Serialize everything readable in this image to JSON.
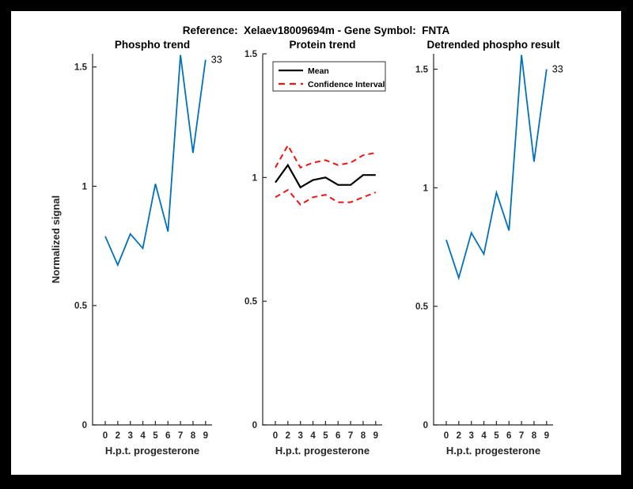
{
  "title": "Reference:  Xelaev18009694m - Gene Symbol:  FNTA",
  "colors": {
    "line_blue": "#0072BD",
    "ci_red": "#F01414",
    "mean_black": "#000000",
    "axis": "#262626",
    "figure_bg": "#ffffff",
    "page_bg": "#000000"
  },
  "chart_data": [
    {
      "type": "line",
      "title": "Phospho trend",
      "xlabel": "H.p.t. progesterone",
      "ylabel": "Normalized signal",
      "x": [
        0,
        2,
        3,
        4,
        5,
        6,
        7,
        8,
        9
      ],
      "x_spacing": "uniform",
      "x_tick_labels": [
        "0",
        "2",
        "3",
        "4",
        "5",
        "6",
        "7",
        "8",
        "9"
      ],
      "y_ticks": [
        0,
        0.5,
        1,
        1.5
      ],
      "y_tick_labels": [
        "0",
        "0.5",
        "1",
        "1.5"
      ],
      "ylim": [
        0,
        1.555
      ],
      "grid": false,
      "series": [
        {
          "id": "phospho",
          "name": "Phospho trend",
          "color": "#0072BD",
          "style": "solid",
          "width": 1.8,
          "values": [
            0.79,
            0.67,
            0.8,
            0.74,
            1.01,
            0.81,
            1.55,
            1.14,
            1.53
          ]
        }
      ],
      "annotation": "33"
    },
    {
      "type": "line",
      "title": "Protein trend",
      "xlabel": "H.p.t. progesterone",
      "ylabel": "",
      "x": [
        0,
        2,
        3,
        4,
        5,
        6,
        7,
        8,
        9
      ],
      "x_spacing": "uniform",
      "x_tick_labels": [
        "0",
        "2",
        "3",
        "4",
        "5",
        "6",
        "7",
        "8",
        "9"
      ],
      "y_ticks": [
        0,
        0.5,
        1,
        1.5
      ],
      "y_tick_labels": [
        "0",
        "0.5",
        "1",
        "1.5"
      ],
      "ylim": [
        0,
        1.5
      ],
      "grid": false,
      "series": [
        {
          "id": "mean",
          "name": "Mean",
          "color": "#000000",
          "style": "solid",
          "width": 2.2,
          "values": [
            0.98,
            1.05,
            0.96,
            0.99,
            1.0,
            0.97,
            0.97,
            1.01,
            1.01
          ]
        },
        {
          "id": "ci-upper",
          "name": "Confidence Interval (upper)",
          "color": "#F01414",
          "style": "dashed",
          "width": 2,
          "values": [
            1.04,
            1.13,
            1.04,
            1.06,
            1.07,
            1.05,
            1.06,
            1.09,
            1.1
          ]
        },
        {
          "id": "ci-lower",
          "name": "Confidence Interval (lower)",
          "color": "#F01414",
          "style": "dashed",
          "width": 2,
          "values": [
            0.92,
            0.95,
            0.89,
            0.92,
            0.93,
            0.9,
            0.9,
            0.92,
            0.94
          ]
        }
      ],
      "legend": {
        "position": "northwest-inside",
        "entries": [
          {
            "label": "Mean",
            "color": "#000000",
            "style": "solid"
          },
          {
            "label": "Confidence Interval",
            "color": "#F01414",
            "style": "dashed"
          }
        ]
      }
    },
    {
      "type": "line",
      "title": "Detrended phospho result",
      "xlabel": "H.p.t. progesterone",
      "ylabel": "",
      "x": [
        0,
        2,
        3,
        4,
        5,
        6,
        7,
        8,
        9
      ],
      "x_spacing": "uniform",
      "x_tick_labels": [
        "0",
        "2",
        "3",
        "4",
        "5",
        "6",
        "7",
        "8",
        "9"
      ],
      "y_ticks": [
        0,
        0.5,
        1,
        1.5
      ],
      "y_tick_labels": [
        "0",
        "0.5",
        "1",
        "1.5"
      ],
      "ylim": [
        0,
        1.565
      ],
      "grid": false,
      "series": [
        {
          "id": "detrended",
          "name": "Detrended phospho",
          "color": "#0072BD",
          "style": "solid",
          "width": 1.8,
          "values": [
            0.78,
            0.62,
            0.81,
            0.72,
            0.98,
            0.82,
            1.56,
            1.11,
            1.5
          ]
        }
      ],
      "annotation": "33"
    }
  ]
}
